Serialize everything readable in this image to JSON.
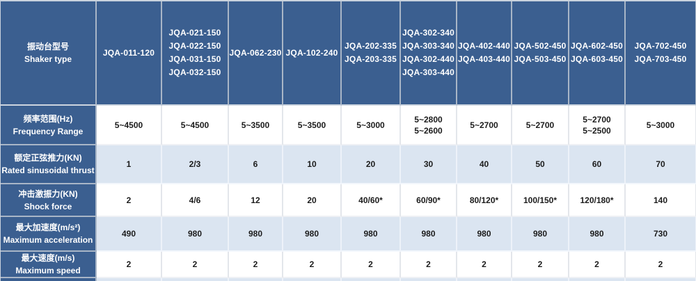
{
  "colors": {
    "header_bg": "#3b5f90",
    "light_row_bg": "#dbe5f1",
    "white_row_bg": "#ffffff",
    "header_text": "#ffffff",
    "data_text": "#1c1c1c",
    "grid_dark": "#a9b6c7",
    "grid_light": "#e3e6eb"
  },
  "table": {
    "columns": {
      "label_header": {
        "zh": "振动台型号",
        "en": "Shaker type"
      },
      "models": [
        [
          "JQA-011-120"
        ],
        [
          "JQA-021-150",
          "JQA-022-150",
          "JQA-031-150",
          "JQA-032-150"
        ],
        [
          "JQA-062-230"
        ],
        [
          "JQA-102-240"
        ],
        [
          "JQA-202-335",
          "JQA-203-335"
        ],
        [
          "JQA-302-340",
          "JQA-303-340",
          "JQA-302-440",
          "JQA-303-440"
        ],
        [
          "JQA-402-440",
          "JQA-403-440"
        ],
        [
          "JQA-502-450",
          "JQA-503-450"
        ],
        [
          "JQA-602-450",
          "JQA-603-450"
        ],
        [
          "JQA-702-450",
          "JQA-703-450"
        ]
      ]
    },
    "rows": [
      {
        "id": "frequency-range",
        "label_zh": "频率范围(Hz)",
        "label_en": "Frequency Range",
        "shade": "white",
        "values": [
          [
            "5~4500"
          ],
          [
            "5~4500"
          ],
          [
            "5~3500"
          ],
          [
            "5~3500"
          ],
          [
            "5~3000"
          ],
          [
            "5~2800",
            "5~2600"
          ],
          [
            "5~2700"
          ],
          [
            "5~2700"
          ],
          [
            "5~2700",
            "5~2500"
          ],
          [
            "5~3000"
          ]
        ]
      },
      {
        "id": "rated-sinusoidal-thrust",
        "label_zh": "额定正弦推力(KN)",
        "label_en": "Rated sinusoidal thrust",
        "shade": "light",
        "values": [
          [
            "1"
          ],
          [
            "2/3"
          ],
          [
            "6"
          ],
          [
            "10"
          ],
          [
            "20"
          ],
          [
            "30"
          ],
          [
            "40"
          ],
          [
            "50"
          ],
          [
            "60"
          ],
          [
            "70"
          ]
        ]
      },
      {
        "id": "shock-force",
        "label_zh": "冲击激振力(KN)",
        "label_en": "Shock force",
        "shade": "white",
        "values": [
          [
            "2"
          ],
          [
            "4/6"
          ],
          [
            "12"
          ],
          [
            "20"
          ],
          [
            "40/60*"
          ],
          [
            "60/90*"
          ],
          [
            "80/120*"
          ],
          [
            "100/150*"
          ],
          [
            "120/180*"
          ],
          [
            "140"
          ]
        ]
      },
      {
        "id": "maximum-acceleration",
        "label_zh": "最大加速度(m/s²)",
        "label_en": "Maximum acceleration",
        "shade": "light",
        "values": [
          [
            "490"
          ],
          [
            "980"
          ],
          [
            "980"
          ],
          [
            "980"
          ],
          [
            "980"
          ],
          [
            "980"
          ],
          [
            "980"
          ],
          [
            "980"
          ],
          [
            "980"
          ],
          [
            "730"
          ]
        ]
      },
      {
        "id": "maximum-speed",
        "label_zh": "最大速度(m/s)",
        "label_en": "Maximum speed",
        "shade": "white",
        "values": [
          [
            "2"
          ],
          [
            "2"
          ],
          [
            "2"
          ],
          [
            "2"
          ],
          [
            "2"
          ],
          [
            "2"
          ],
          [
            "2"
          ],
          [
            "2"
          ],
          [
            "2"
          ],
          [
            "2"
          ]
        ]
      }
    ],
    "partial_row": {
      "shade": "light"
    }
  }
}
